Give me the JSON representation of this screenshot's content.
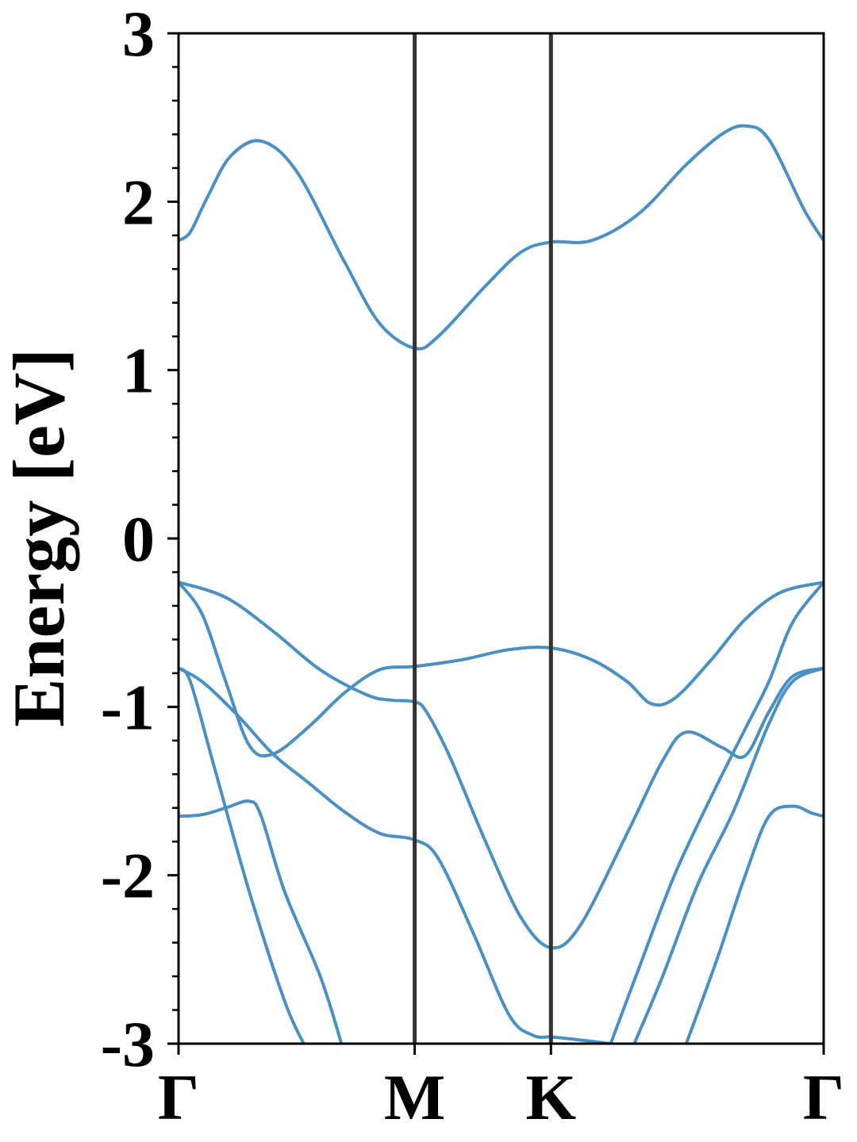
{
  "chart_data": {
    "type": "line",
    "title": "",
    "xlabel": "",
    "ylabel": "Energy [eV]",
    "ylim": [
      -3,
      3
    ],
    "xlim": [
      0,
      2.732
    ],
    "y_ticks": [
      {
        "value": 3,
        "label": "3"
      },
      {
        "value": 2,
        "label": "2"
      },
      {
        "value": 1,
        "label": "1"
      },
      {
        "value": 0,
        "label": "0"
      },
      {
        "value": -1,
        "label": "-1"
      },
      {
        "value": -2,
        "label": "-2"
      },
      {
        "value": -3,
        "label": "-3"
      }
    ],
    "y_minor_step": 0.2,
    "k_points": [
      {
        "label": "Γ",
        "x": 0
      },
      {
        "label": "M",
        "x": 1.0
      },
      {
        "label": "K",
        "x": 1.577
      },
      {
        "label": "Γ",
        "x": 2.732
      }
    ],
    "grid": false,
    "legend": "none",
    "line_color": "#4a90c2",
    "divider_color": "#333333",
    "series": [
      {
        "values": [
          [
            0,
            1.77
          ],
          [
            0.05,
            1.82
          ],
          [
            0.12,
            2.02
          ],
          [
            0.22,
            2.27
          ],
          [
            0.35,
            2.36
          ],
          [
            0.5,
            2.18
          ],
          [
            0.7,
            1.65
          ],
          [
            0.85,
            1.28
          ],
          [
            1.0,
            1.13
          ],
          [
            1.1,
            1.2
          ],
          [
            1.3,
            1.5
          ],
          [
            1.45,
            1.7
          ],
          [
            1.577,
            1.76
          ],
          [
            1.75,
            1.77
          ],
          [
            1.95,
            1.93
          ],
          [
            2.15,
            2.22
          ],
          [
            2.3,
            2.4
          ],
          [
            2.4,
            2.45
          ],
          [
            2.5,
            2.37
          ],
          [
            2.65,
            1.95
          ],
          [
            2.732,
            1.77
          ]
        ]
      },
      {
        "values": [
          [
            0,
            -0.26
          ],
          [
            0.2,
            -0.35
          ],
          [
            0.4,
            -0.55
          ],
          [
            0.6,
            -0.78
          ],
          [
            0.8,
            -0.93
          ],
          [
            0.9,
            -0.96
          ],
          [
            1.0,
            -0.97
          ],
          [
            1.05,
            -1.03
          ],
          [
            1.15,
            -1.3
          ],
          [
            1.3,
            -1.8
          ],
          [
            1.45,
            -2.25
          ],
          [
            1.577,
            -2.43
          ],
          [
            1.7,
            -2.3
          ],
          [
            1.9,
            -1.75
          ],
          [
            2.05,
            -1.32
          ],
          [
            2.15,
            -1.15
          ],
          [
            2.3,
            -1.24
          ],
          [
            2.4,
            -1.29
          ],
          [
            2.5,
            -1.03
          ],
          [
            2.6,
            -0.82
          ],
          [
            2.732,
            -0.77
          ]
        ]
      },
      {
        "values": [
          [
            0,
            -0.26
          ],
          [
            0.1,
            -0.45
          ],
          [
            0.2,
            -0.85
          ],
          [
            0.3,
            -1.23
          ],
          [
            0.4,
            -1.28
          ],
          [
            0.55,
            -1.12
          ],
          [
            0.7,
            -0.92
          ],
          [
            0.85,
            -0.78
          ],
          [
            1.0,
            -0.76
          ],
          [
            1.2,
            -0.72
          ],
          [
            1.4,
            -0.66
          ],
          [
            1.577,
            -0.65
          ],
          [
            1.75,
            -0.72
          ],
          [
            1.9,
            -0.85
          ],
          [
            2.0,
            -0.98
          ],
          [
            2.1,
            -0.95
          ],
          [
            2.25,
            -0.73
          ],
          [
            2.4,
            -0.48
          ],
          [
            2.55,
            -0.32
          ],
          [
            2.732,
            -0.26
          ]
        ]
      },
      {
        "values": [
          [
            0,
            -0.77
          ],
          [
            0.1,
            -0.85
          ],
          [
            0.25,
            -1.05
          ],
          [
            0.4,
            -1.28
          ],
          [
            0.55,
            -1.45
          ],
          [
            0.7,
            -1.62
          ],
          [
            0.85,
            -1.75
          ],
          [
            1.0,
            -1.79
          ],
          [
            1.1,
            -1.9
          ],
          [
            1.25,
            -2.35
          ],
          [
            1.4,
            -2.83
          ],
          [
            1.5,
            -2.95
          ],
          [
            1.577,
            -2.96
          ],
          [
            1.65,
            -2.97
          ],
          [
            1.83,
            -3.0
          ]
        ]
      },
      {
        "values": [
          [
            1.83,
            -3.0
          ],
          [
            1.95,
            -2.55
          ],
          [
            2.1,
            -2.0
          ],
          [
            2.25,
            -1.55
          ],
          [
            2.4,
            -1.13
          ],
          [
            2.5,
            -0.85
          ],
          [
            2.6,
            -0.5
          ],
          [
            2.732,
            -0.26
          ]
        ]
      },
      {
        "values": [
          [
            0,
            -0.77
          ],
          [
            0.05,
            -0.85
          ],
          [
            0.15,
            -1.35
          ],
          [
            0.3,
            -2.1
          ],
          [
            0.45,
            -2.75
          ],
          [
            0.53,
            -3.0
          ]
        ]
      },
      {
        "values": [
          [
            1.93,
            -3.0
          ],
          [
            2.05,
            -2.6
          ],
          [
            2.2,
            -2.05
          ],
          [
            2.35,
            -1.62
          ],
          [
            2.5,
            -1.1
          ],
          [
            2.6,
            -0.85
          ],
          [
            2.732,
            -0.77
          ]
        ]
      },
      {
        "values": [
          [
            0,
            -1.65
          ],
          [
            0.1,
            -1.64
          ],
          [
            0.2,
            -1.6
          ],
          [
            0.3,
            -1.56
          ],
          [
            0.35,
            -1.65
          ],
          [
            0.45,
            -2.1
          ],
          [
            0.6,
            -2.6
          ],
          [
            0.69,
            -3.0
          ]
        ]
      },
      {
        "values": [
          [
            2.15,
            -3.0
          ],
          [
            2.28,
            -2.5
          ],
          [
            2.4,
            -2.0
          ],
          [
            2.5,
            -1.65
          ],
          [
            2.6,
            -1.59
          ],
          [
            2.68,
            -1.63
          ],
          [
            2.732,
            -1.65
          ]
        ]
      }
    ]
  }
}
